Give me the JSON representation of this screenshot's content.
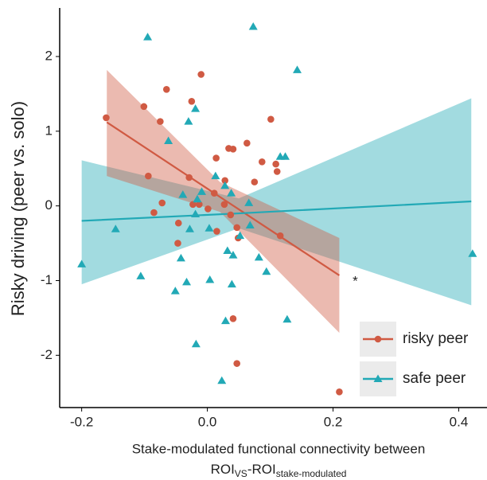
{
  "chart_data": {
    "type": "scatter",
    "y_label": "Risky driving (peer vs. solo)",
    "x_label": "Stake-modulated functional connectivity between",
    "x_label_line2": [
      "ROI",
      "VS",
      "-ROI",
      "stake-modulated"
    ],
    "annotation": "*",
    "xlim": [
      -0.235,
      0.445
    ],
    "xticks": [
      -0.2,
      {
        "value": 0,
        "label": "0.0"
      },
      0.2,
      0.4
    ],
    "ylim": [
      -2.7,
      2.65
    ],
    "yticks": [
      -2,
      -1,
      0,
      1,
      2
    ],
    "legend": "bottom-right",
    "series": [
      {
        "name": "risky peer",
        "color": "#d05a43",
        "marker": "circle",
        "x": [
          -0.161,
          -0.101,
          -0.065,
          -0.01,
          -0.025,
          -0.075,
          0.014,
          0.034,
          0.041,
          0.063,
          0.101,
          0.109,
          0.111,
          0.087,
          0.075,
          0.028,
          -0.029,
          -0.094,
          -0.072,
          -0.085,
          -0.023,
          -0.013,
          0.001,
          0.027,
          0.037,
          0.015,
          0.047,
          0.049,
          -0.047,
          0.116,
          0.041,
          0.047,
          0.21,
          -0.046,
          0.011
        ],
        "y": [
          1.18,
          1.33,
          1.56,
          1.76,
          1.4,
          1.13,
          0.64,
          0.77,
          0.76,
          0.84,
          1.16,
          0.56,
          0.46,
          0.59,
          0.32,
          0.34,
          0.38,
          0.4,
          0.04,
          -0.09,
          0.02,
          0.02,
          -0.04,
          0.02,
          -0.12,
          -0.34,
          -0.29,
          -0.43,
          -0.5,
          -0.4,
          -1.51,
          -2.11,
          -2.49,
          -0.23,
          0.17
        ],
        "fit": {
          "x": [
            -0.16,
            0.02,
            0.21
          ],
          "y": [
            1.12,
            0.12,
            -0.93
          ],
          "lower": [
            0.4,
            -0.08,
            -1.7
          ],
          "upper": [
            1.82,
            0.32,
            -0.43
          ]
        }
      },
      {
        "name": "safe peer",
        "color": "#22a9b6",
        "marker": "triangle",
        "x": [
          -0.095,
          0.073,
          0.143,
          -0.019,
          -0.03,
          -0.062,
          0.116,
          0.124,
          0.013,
          0.028,
          0.038,
          -0.009,
          -0.039,
          -0.016,
          -0.028,
          0.003,
          0.052,
          0.066,
          0.068,
          -0.146,
          -0.2,
          -0.106,
          -0.042,
          -0.051,
          -0.033,
          0.004,
          0.032,
          0.041,
          0.082,
          0.094,
          0.039,
          0.127,
          0.029,
          -0.018,
          0.023,
          0.422,
          -0.019
        ],
        "y": [
          2.26,
          2.4,
          1.82,
          1.3,
          1.13,
          0.87,
          0.66,
          0.66,
          0.4,
          0.27,
          0.17,
          0.19,
          0.15,
          0.09,
          -0.31,
          -0.3,
          -0.4,
          0.04,
          -0.26,
          -0.31,
          -0.78,
          -0.94,
          -0.7,
          -1.14,
          -1.02,
          -0.99,
          -0.6,
          -0.66,
          -0.69,
          -0.88,
          -1.05,
          -1.52,
          -1.54,
          -1.85,
          -2.34,
          -0.64,
          -0.11
        ],
        "fit": {
          "x": [
            -0.2,
            0.05,
            0.42
          ],
          "y": [
            -0.2,
            -0.1,
            0.06
          ],
          "lower": [
            -1.05,
            -0.3,
            -1.33
          ],
          "upper": [
            0.61,
            0.1,
            1.44
          ]
        }
      }
    ]
  }
}
